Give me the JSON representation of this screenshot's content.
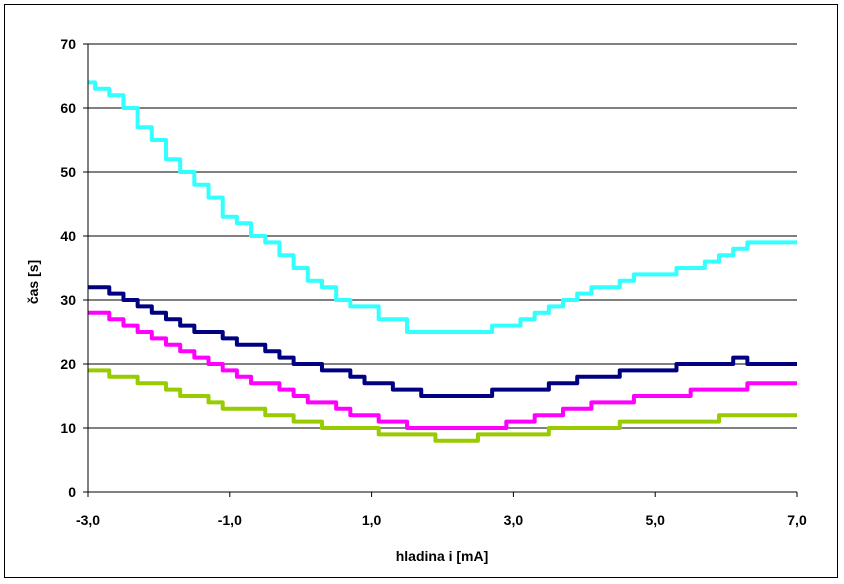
{
  "chart_data": {
    "type": "line",
    "xlabel": "hladina i [mA]",
    "ylabel": "čas [s]",
    "xlim": [
      -3,
      7
    ],
    "ylim": [
      0,
      70
    ],
    "x_ticks": [
      -3,
      -1,
      1,
      3,
      5,
      7
    ],
    "x_tick_labels": [
      "-3,0",
      "-1,0",
      "1,0",
      "3,0",
      "5,0",
      "7,0"
    ],
    "y_ticks": [
      0,
      10,
      20,
      30,
      40,
      50,
      60,
      70
    ],
    "y_tick_labels": [
      "0",
      "10",
      "20",
      "30",
      "40",
      "50",
      "60",
      "70"
    ],
    "grid": "horizontal",
    "legend": "none",
    "series": [
      {
        "color": "#33ffff",
        "x": [
          -3.0,
          -2.8,
          -2.6,
          -2.4,
          -2.2,
          -2.0,
          -1.8,
          -1.6,
          -1.4,
          -1.2,
          -1.0,
          -0.8,
          -0.6,
          -0.4,
          -0.2,
          0.0,
          0.2,
          0.4,
          0.6,
          0.8,
          1.0,
          1.2,
          1.4,
          1.6,
          1.8,
          2.0,
          2.2,
          2.4,
          2.6,
          2.8,
          3.0,
          3.2,
          3.4,
          3.6,
          3.8,
          4.0,
          4.2,
          4.4,
          4.6,
          4.8,
          5.0,
          5.2,
          5.4,
          5.6,
          5.8,
          6.0,
          6.2,
          6.4,
          6.6,
          6.8,
          7.0
        ],
        "y": [
          64,
          63,
          62,
          60,
          57,
          55,
          52,
          50,
          48,
          46,
          43,
          42,
          40,
          39,
          37,
          35,
          33,
          32,
          30,
          29,
          29,
          27,
          27,
          25,
          25,
          25,
          25,
          25,
          25,
          26,
          26,
          27,
          28,
          29,
          30,
          31,
          32,
          32,
          33,
          34,
          34,
          34,
          35,
          35,
          36,
          37,
          38,
          39,
          39,
          39,
          39
        ]
      },
      {
        "color": "#000080",
        "x": [
          -3.0,
          -2.8,
          -2.6,
          -2.4,
          -2.2,
          -2.0,
          -1.8,
          -1.6,
          -1.4,
          -1.2,
          -1.0,
          -0.8,
          -0.6,
          -0.4,
          -0.2,
          0.0,
          0.2,
          0.4,
          0.6,
          0.8,
          1.0,
          1.2,
          1.4,
          1.6,
          1.8,
          2.0,
          2.2,
          2.4,
          2.6,
          2.8,
          3.0,
          3.2,
          3.4,
          3.6,
          3.8,
          4.0,
          4.2,
          4.4,
          4.6,
          4.8,
          5.0,
          5.2,
          5.4,
          5.6,
          5.8,
          6.0,
          6.2,
          6.4,
          6.6,
          6.8,
          7.0
        ],
        "y": [
          32,
          32,
          31,
          30,
          29,
          28,
          27,
          26,
          25,
          25,
          24,
          23,
          23,
          22,
          21,
          20,
          20,
          19,
          19,
          18,
          17,
          17,
          16,
          16,
          15,
          15,
          15,
          15,
          15,
          16,
          16,
          16,
          16,
          17,
          17,
          18,
          18,
          18,
          19,
          19,
          19,
          19,
          20,
          20,
          20,
          20,
          21,
          20,
          20,
          20,
          20
        ]
      },
      {
        "color": "#ff00ff",
        "x": [
          -3.0,
          -2.8,
          -2.6,
          -2.4,
          -2.2,
          -2.0,
          -1.8,
          -1.6,
          -1.4,
          -1.2,
          -1.0,
          -0.8,
          -0.6,
          -0.4,
          -0.2,
          0.0,
          0.2,
          0.4,
          0.6,
          0.8,
          1.0,
          1.2,
          1.4,
          1.6,
          1.8,
          2.0,
          2.2,
          2.4,
          2.6,
          2.8,
          3.0,
          3.2,
          3.4,
          3.6,
          3.8,
          4.0,
          4.2,
          4.4,
          4.6,
          4.8,
          5.0,
          5.2,
          5.4,
          5.6,
          5.8,
          6.0,
          6.2,
          6.4,
          6.6,
          6.8,
          7.0
        ],
        "y": [
          28,
          28,
          27,
          26,
          25,
          24,
          23,
          22,
          21,
          20,
          19,
          18,
          17,
          17,
          16,
          15,
          14,
          14,
          13,
          12,
          12,
          11,
          11,
          10,
          10,
          10,
          10,
          10,
          10,
          10,
          11,
          11,
          12,
          12,
          13,
          13,
          14,
          14,
          14,
          15,
          15,
          15,
          15,
          16,
          16,
          16,
          16,
          17,
          17,
          17,
          17
        ]
      },
      {
        "color": "#99cc00",
        "x": [
          -3.0,
          -2.8,
          -2.6,
          -2.4,
          -2.2,
          -2.0,
          -1.8,
          -1.6,
          -1.4,
          -1.2,
          -1.0,
          -0.8,
          -0.6,
          -0.4,
          -0.2,
          0.0,
          0.2,
          0.4,
          0.6,
          0.8,
          1.0,
          1.2,
          1.4,
          1.6,
          1.8,
          2.0,
          2.2,
          2.4,
          2.6,
          2.8,
          3.0,
          3.2,
          3.4,
          3.6,
          3.8,
          4.0,
          4.2,
          4.4,
          4.6,
          4.8,
          5.0,
          5.2,
          5.4,
          5.6,
          5.8,
          6.0,
          6.2,
          6.4,
          6.6,
          6.8,
          7.0
        ],
        "y": [
          19,
          19,
          18,
          18,
          17,
          17,
          16,
          15,
          15,
          14,
          13,
          13,
          13,
          12,
          12,
          11,
          11,
          10,
          10,
          10,
          10,
          9,
          9,
          9,
          9,
          8,
          8,
          8,
          9,
          9,
          9,
          9,
          9,
          10,
          10,
          10,
          10,
          10,
          11,
          11,
          11,
          11,
          11,
          11,
          11,
          12,
          12,
          12,
          12,
          12,
          12
        ]
      }
    ]
  }
}
